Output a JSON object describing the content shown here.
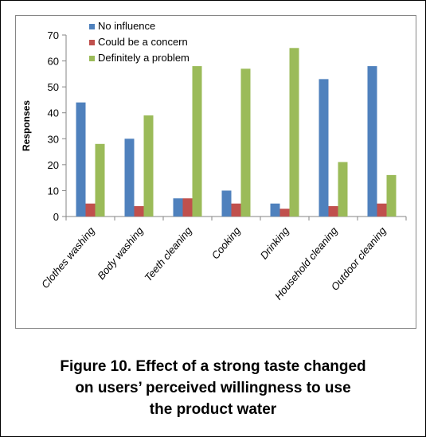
{
  "caption": {
    "line1": "Figure 10. Effect of a strong taste changed",
    "line2": "on users’ perceived willingness to use",
    "line3": "the product water"
  },
  "chart_data": {
    "type": "bar",
    "categories": [
      "Clothes washing",
      "Body washing",
      "Teeth cleaning",
      "Cooking",
      "Drinking",
      "Household cleaning",
      "Outdoor cleaning"
    ],
    "series": [
      {
        "name": "No influence",
        "color": "#4F81BD",
        "values": [
          44,
          30,
          7,
          10,
          5,
          53,
          58
        ]
      },
      {
        "name": "Could be a concern",
        "color": "#C0504D",
        "values": [
          5,
          4,
          7,
          5,
          3,
          4,
          5
        ]
      },
      {
        "name": "Definitely a problem",
        "color": "#9BBB59",
        "values": [
          28,
          39,
          58,
          57,
          65,
          21,
          16
        ]
      }
    ],
    "ylabel": "Responses",
    "xlabel": "",
    "ylim": [
      0,
      70
    ],
    "yticks": [
      0,
      10,
      20,
      30,
      40,
      50,
      60,
      70
    ],
    "grid": false,
    "legend": "top-left"
  }
}
